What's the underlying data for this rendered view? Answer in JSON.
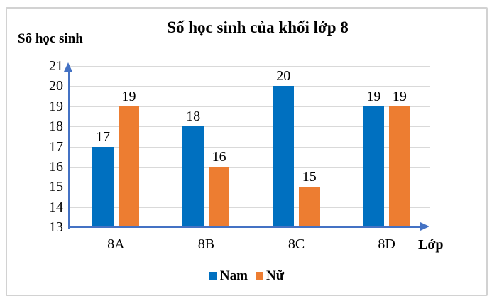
{
  "chart_data": {
    "type": "bar",
    "title": "Số học sinh của khối lớp 8",
    "ylabel": "Số học sinh",
    "xlabel": "Lớp",
    "categories": [
      "8A",
      "8B",
      "8C",
      "8D"
    ],
    "series": [
      {
        "name": "Nam",
        "color": "#0070C0",
        "values": [
          17,
          18,
          20,
          19
        ]
      },
      {
        "name": "Nữ",
        "color": "#ED7D31",
        "values": [
          19,
          16,
          15,
          19
        ]
      }
    ],
    "ylim": [
      13,
      21
    ],
    "yticks": [
      13,
      14,
      15,
      16,
      17,
      18,
      19,
      20,
      21
    ],
    "grid": true,
    "data_labels": true,
    "legend_position": "bottom",
    "colors": {
      "axis": "#4472C4",
      "gridline": "#D9D9D9",
      "frame_border": "#D2D2D2",
      "text": "#000000",
      "background": "#FFFFFF"
    }
  }
}
